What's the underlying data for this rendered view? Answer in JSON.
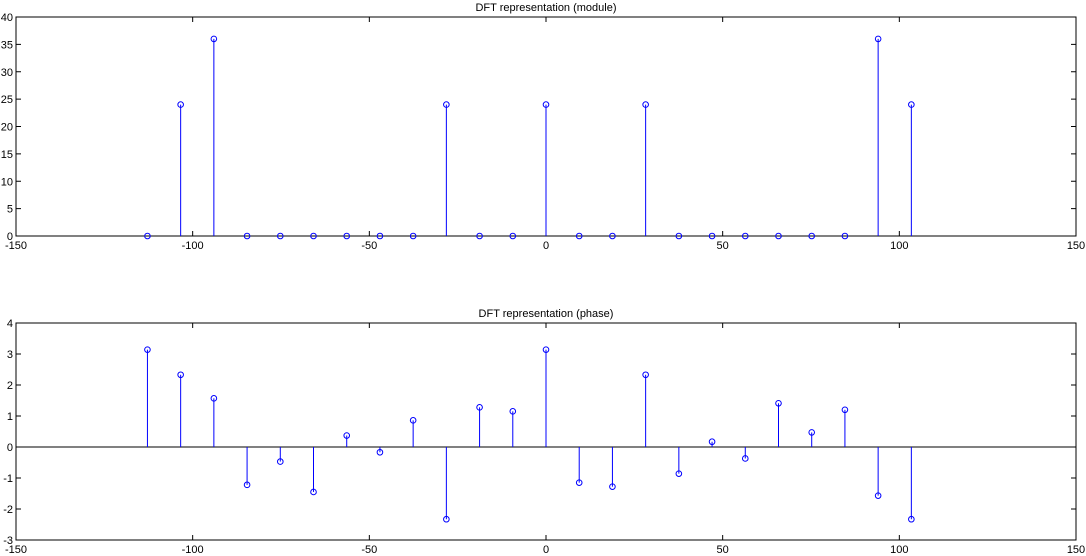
{
  "chart_data": [
    {
      "type": "stem",
      "title": "DFT representation (module)",
      "xlabel": "",
      "ylabel": "",
      "xlim": [
        -150,
        150
      ],
      "ylim": [
        0,
        40
      ],
      "xticks": [
        -150,
        -100,
        -50,
        0,
        50,
        100,
        150
      ],
      "yticks": [
        0,
        5,
        10,
        15,
        20,
        25,
        30,
        35,
        40
      ],
      "xtick_labels": [
        "-150",
        "-100",
        "-50",
        "0",
        "50",
        "100",
        "150"
      ],
      "ytick_labels": [
        "0",
        "5",
        "10",
        "15",
        "20",
        "25",
        "30",
        "35",
        "40"
      ],
      "grid": false,
      "series": [
        {
          "name": "module",
          "color": "#0000ff",
          "x": [
            -112.8,
            -103.4,
            -94.0,
            -84.6,
            -75.2,
            -65.8,
            -56.4,
            -47.0,
            -37.6,
            -28.2,
            -18.8,
            -9.4,
            0,
            9.4,
            18.8,
            28.2,
            37.6,
            47.0,
            56.4,
            65.8,
            75.2,
            84.6,
            94.0,
            103.4
          ],
          "y": [
            0,
            24,
            36,
            0,
            0,
            0,
            0,
            0,
            0,
            24,
            0,
            0,
            24,
            0,
            0,
            24,
            0,
            0,
            0,
            0,
            0,
            0,
            36,
            24
          ]
        }
      ]
    },
    {
      "type": "stem",
      "title": "DFT representation (phase)",
      "xlabel": "",
      "ylabel": "",
      "xlim": [
        -150,
        150
      ],
      "ylim": [
        -3,
        4
      ],
      "xticks": [
        -150,
        -100,
        -50,
        0,
        50,
        100,
        150
      ],
      "yticks": [
        -3,
        -2,
        -1,
        0,
        1,
        2,
        3,
        4
      ],
      "xtick_labels": [
        "-150",
        "-100",
        "-50",
        "0",
        "50",
        "100",
        "150"
      ],
      "ytick_labels": [
        "-3",
        "-2",
        "-1",
        "0",
        "1",
        "2",
        "3",
        "4"
      ],
      "grid": false,
      "series": [
        {
          "name": "phase",
          "color": "#0000ff",
          "x": [
            -112.8,
            -103.4,
            -94.0,
            -84.6,
            -75.2,
            -65.8,
            -56.4,
            -47.0,
            -37.6,
            -28.2,
            -18.8,
            -9.4,
            0,
            9.4,
            18.8,
            28.2,
            37.6,
            47.0,
            56.4,
            65.8,
            75.2,
            84.6,
            94.0,
            103.4
          ],
          "y": [
            3.14,
            2.33,
            1.57,
            -1.22,
            -0.47,
            -1.45,
            0.37,
            -0.17,
            0.86,
            -2.33,
            1.28,
            1.15,
            3.14,
            -1.15,
            -1.28,
            2.33,
            -0.86,
            0.17,
            -0.37,
            1.41,
            0.47,
            1.2,
            -1.57,
            -2.33
          ]
        }
      ]
    }
  ]
}
